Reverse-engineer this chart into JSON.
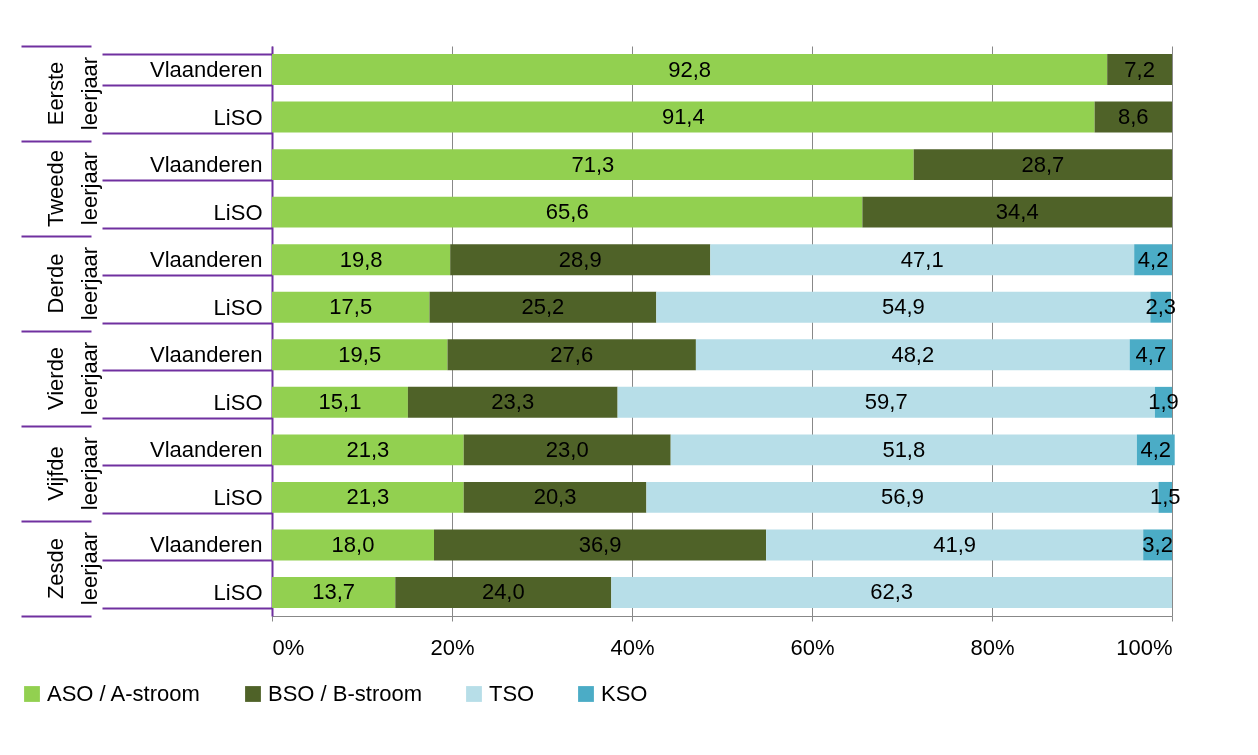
{
  "chart_data": {
    "type": "bar",
    "orientation": "horizontal",
    "stacked": true,
    "categories": [
      "Vlaanderen",
      "LiSO",
      "Vlaanderen",
      "LiSO",
      "Vlaanderen",
      "LiSO",
      "Vlaanderen",
      "LiSO",
      "Vlaanderen",
      "LiSO",
      "Vlaanderen",
      "LiSO"
    ],
    "series": [
      {
        "name": "ASO / A-stroom",
        "color": "#92d050",
        "values": [
          92.8,
          91.4,
          71.3,
          65.6,
          19.8,
          17.5,
          19.5,
          15.1,
          21.3,
          21.3,
          18.0,
          13.7
        ],
        "value_labels": [
          "92,8",
          "91,4",
          "71,3",
          "65,6",
          "19,8",
          "17,5",
          "19,5",
          "15,1",
          "21,3",
          "21,3",
          "18,0",
          "13,7"
        ]
      },
      {
        "name": "BSO / B-stroom",
        "color": "#4f6228",
        "values": [
          7.2,
          8.6,
          28.7,
          34.4,
          28.9,
          25.2,
          27.6,
          23.3,
          23.0,
          20.3,
          36.9,
          24.0
        ],
        "value_labels": [
          "7,2",
          "8,6",
          "28,7",
          "34,4",
          "28,9",
          "25,2",
          "27,6",
          "23,3",
          "23,0",
          "20,3",
          "36,9",
          "24,0"
        ]
      },
      {
        "name": "TSO",
        "color": "#b7dee8",
        "values": [
          null,
          null,
          null,
          null,
          47.1,
          54.9,
          48.2,
          59.7,
          51.8,
          56.9,
          41.9,
          62.3
        ],
        "value_labels": [
          null,
          null,
          null,
          null,
          "47,1",
          "54,9",
          "48,2",
          "59,7",
          "51,8",
          "56,9",
          "41,9",
          "62,3"
        ]
      },
      {
        "name": "KSO",
        "color": "#4bacc6",
        "values": [
          null,
          null,
          null,
          null,
          4.2,
          2.3,
          4.7,
          1.9,
          4.2,
          1.5,
          3.2,
          null
        ],
        "value_labels": [
          null,
          null,
          null,
          null,
          "4,2",
          "2,3",
          "4,7",
          "1,9",
          "4,2",
          "1,5",
          "3,2",
          null
        ]
      }
    ],
    "annotations": [
      "Eerste leerjaar",
      "Tweede leerjaar",
      "Derde leerjaar",
      "Vierde leerjaar",
      "Vijfde leerjaar",
      "Zesde leerjaar"
    ],
    "xlim": [
      0,
      100
    ],
    "xticks": [
      {
        "value": 0,
        "label": "0%"
      },
      {
        "value": 20,
        "label": "20%"
      },
      {
        "value": 40,
        "label": "40%"
      },
      {
        "value": 60,
        "label": "60%"
      },
      {
        "value": 80,
        "label": "80%"
      },
      {
        "value": 100,
        "label": "100%"
      }
    ],
    "grid": "x",
    "legend": "bottom"
  }
}
